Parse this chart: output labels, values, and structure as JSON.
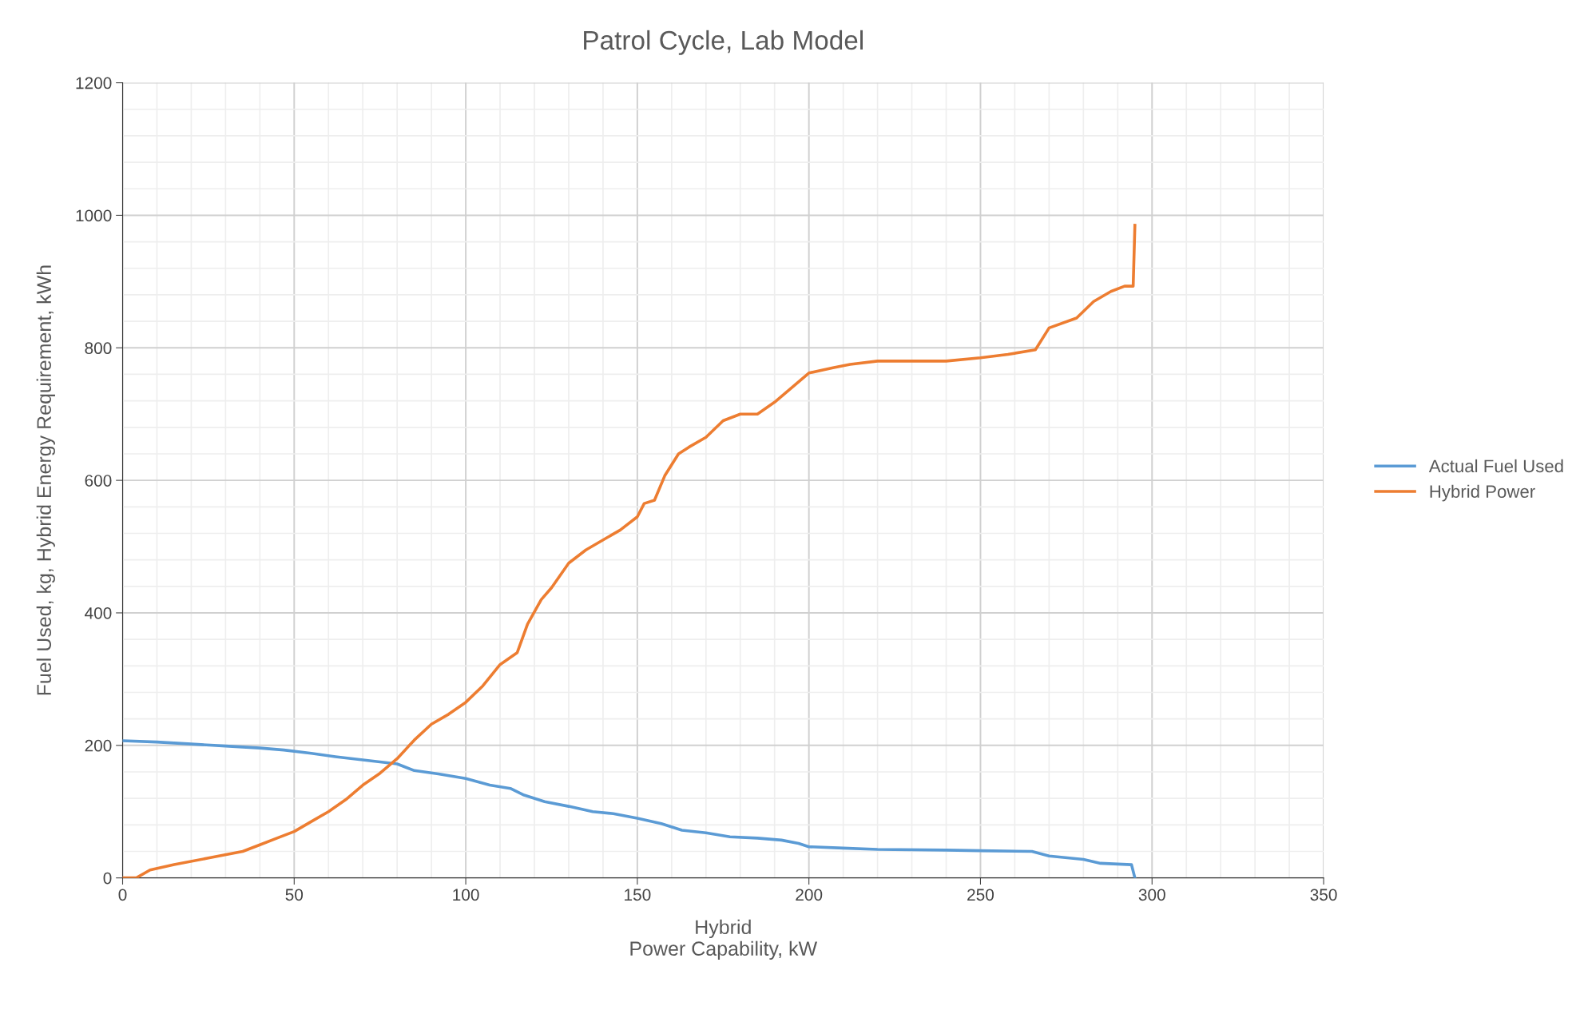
{
  "chart_data": {
    "type": "line",
    "title": "Patrol Cycle, Lab Model",
    "xlabel": "Hybrid\nPower Capability, kW",
    "ylabel": "Fuel Used, kg, Hybrid Energy Requirement, kWh",
    "xlim": [
      0,
      350
    ],
    "xticks": [
      0,
      50,
      100,
      150,
      200,
      250,
      300,
      350
    ],
    "ylim": [
      0,
      1200
    ],
    "yticks": [
      0,
      200,
      400,
      600,
      800,
      1000,
      1200
    ],
    "grid": true,
    "legend": "right",
    "line_style": "solid",
    "series": [
      {
        "name": "Actual Fuel Used",
        "color": "#5b9bd5",
        "x": [
          0,
          10,
          20,
          30,
          40,
          47,
          55,
          62,
          70,
          80,
          85,
          92,
          100,
          107,
          113,
          117,
          123,
          130,
          137,
          143,
          150,
          157,
          163,
          170,
          177,
          185,
          192,
          197,
          200,
          210,
          220,
          240,
          250,
          265,
          270,
          280,
          285,
          294,
          295
        ],
        "values": [
          207,
          205,
          202,
          199,
          196,
          193,
          188,
          183,
          178,
          172,
          162,
          157,
          150,
          140,
          135,
          125,
          115,
          108,
          100,
          97,
          90,
          82,
          72,
          68,
          62,
          60,
          57,
          52,
          47,
          45,
          43,
          42,
          41,
          40,
          33,
          28,
          22,
          20,
          0
        ]
      },
      {
        "name": "Hybrid Power",
        "color": "#ed7d31",
        "x": [
          0,
          4,
          8,
          15,
          25,
          35,
          40,
          45,
          50,
          55,
          60,
          65,
          70,
          75,
          80,
          85,
          90,
          95,
          100,
          105,
          110,
          115,
          118,
          122,
          125,
          130,
          135,
          140,
          145,
          150,
          152,
          155,
          158,
          162,
          165,
          170,
          175,
          180,
          185,
          190,
          195,
          200,
          207,
          212,
          220,
          240,
          250,
          258,
          266,
          270,
          278,
          283,
          288,
          292,
          294.5,
          295
        ],
        "values": [
          0,
          0,
          12,
          20,
          30,
          40,
          50,
          60,
          70,
          85,
          100,
          118,
          140,
          158,
          180,
          208,
          232,
          247,
          265,
          290,
          322,
          340,
          383,
          420,
          438,
          475,
          495,
          510,
          525,
          545,
          565,
          570,
          607,
          640,
          650,
          665,
          690,
          700,
          700,
          718,
          740,
          762,
          770,
          775,
          780,
          780,
          785,
          790,
          797,
          830,
          845,
          870,
          885,
          893,
          893,
          985
        ]
      }
    ]
  }
}
